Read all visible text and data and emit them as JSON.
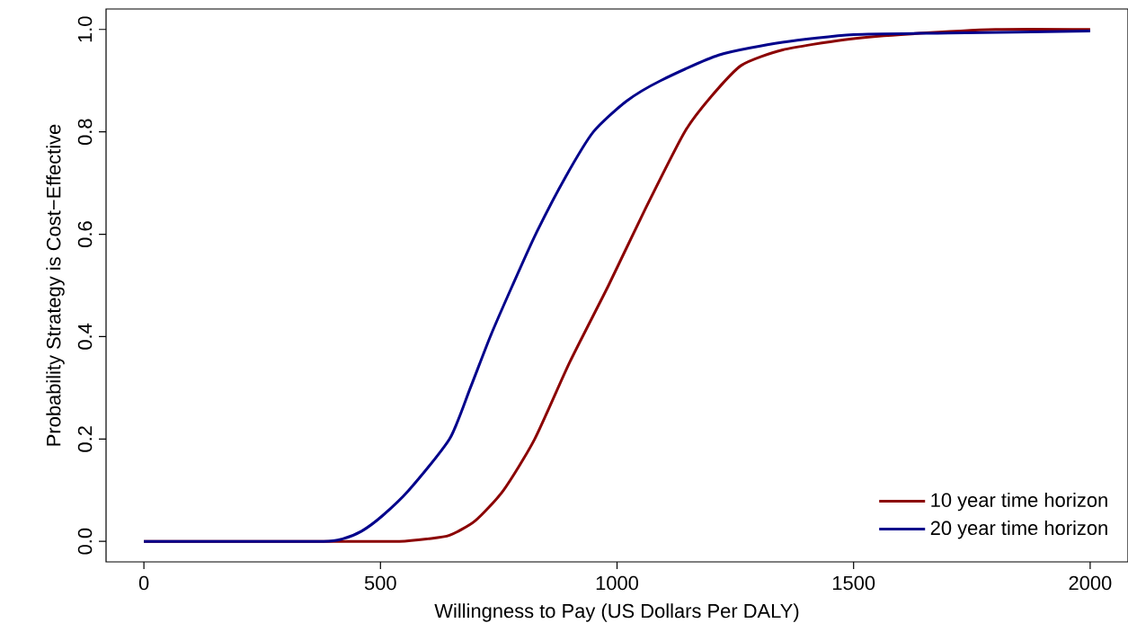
{
  "chart_data": {
    "type": "line",
    "xlabel": "Willingness to Pay (US Dollars Per DALY)",
    "ylabel": "Probability Strategy is Cost−Effective",
    "xlim": [
      -80,
      2080
    ],
    "ylim": [
      -0.04,
      1.04
    ],
    "xticks": [
      0,
      500,
      1000,
      1500,
      2000
    ],
    "yticks": [
      {
        "value": 0,
        "label": "0.0"
      },
      {
        "value": 0.2,
        "label": "0.2"
      },
      {
        "value": 0.4,
        "label": "0.4"
      },
      {
        "value": 0.6,
        "label": "0.6"
      },
      {
        "value": 0.8,
        "label": "0.8"
      },
      {
        "value": 1,
        "label": "1.0"
      }
    ],
    "grid": false,
    "legend": "bottom right",
    "line_style": "solid",
    "marker": "none",
    "series": [
      {
        "name": "10 year time horizon",
        "color": "#8b0000",
        "x": [
          0,
          200,
          400,
          540,
          600,
          646,
          700,
          760,
          826,
          900,
          982,
          1060,
          1143,
          1200,
          1263,
          1350,
          1480,
          1600,
          1800,
          2000
        ],
        "values": [
          0,
          0,
          0,
          0,
          0.005,
          0.012,
          0.04,
          0.1,
          0.2,
          0.35,
          0.5,
          0.65,
          0.8,
          0.87,
          0.93,
          0.96,
          0.98,
          0.99,
          1.0,
          1.0
        ]
      },
      {
        "name": "20 year time horizon",
        "color": "#00008b",
        "x": [
          0,
          200,
          380,
          420,
          460,
          504,
          560,
          646,
          690,
          732,
          779,
          828,
          890,
          950,
          1020,
          1092,
          1215,
          1350,
          1500,
          1700,
          2000
        ],
        "values": [
          0,
          0,
          0,
          0.005,
          0.02,
          0.05,
          0.1,
          0.2,
          0.3,
          0.4,
          0.5,
          0.6,
          0.71,
          0.8,
          0.86,
          0.9,
          0.95,
          0.975,
          0.99,
          0.993,
          0.997
        ]
      }
    ]
  }
}
